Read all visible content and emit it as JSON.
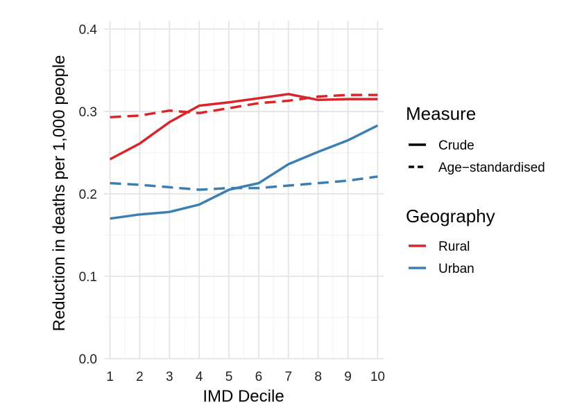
{
  "chart_data": {
    "type": "line",
    "title": "",
    "xlabel": "IMD Decile",
    "ylabel": "Reduction in deaths per 1,000 people",
    "x": [
      1,
      2,
      3,
      4,
      5,
      6,
      7,
      8,
      9,
      10
    ],
    "x_tick_labels": [
      "1",
      "2",
      "3",
      "4",
      "5",
      "6",
      "7",
      "8",
      "9",
      "10"
    ],
    "xlim": [
      0.8,
      10.2
    ],
    "ylim": [
      0.0,
      0.41
    ],
    "y_ticks": [
      0.0,
      0.1,
      0.2,
      0.3,
      0.4
    ],
    "y_tick_labels": [
      "0.0",
      "0.1",
      "0.2",
      "0.3",
      "0.4"
    ],
    "grid": true,
    "legend_placement": "right",
    "series": [
      {
        "geography": "Rural",
        "measure": "Crude",
        "color": "#d7262b",
        "dash": "solid",
        "values": [
          0.242,
          0.261,
          0.287,
          0.307,
          0.311,
          0.316,
          0.321,
          0.314,
          0.315,
          0.315
        ]
      },
      {
        "geography": "Rural",
        "measure": "Age-standardised",
        "color": "#d7262b",
        "dash": "dashed",
        "values": [
          0.293,
          0.295,
          0.301,
          0.298,
          0.304,
          0.31,
          0.313,
          0.318,
          0.32,
          0.32
        ]
      },
      {
        "geography": "Urban",
        "measure": "Crude",
        "color": "#3b7fb2",
        "dash": "solid",
        "values": [
          0.17,
          0.175,
          0.178,
          0.187,
          0.205,
          0.213,
          0.236,
          0.251,
          0.265,
          0.283
        ]
      },
      {
        "geography": "Urban",
        "measure": "Age-standardised",
        "color": "#3b7fb2",
        "dash": "dashed",
        "values": [
          0.213,
          0.211,
          0.208,
          0.205,
          0.207,
          0.207,
          0.21,
          0.213,
          0.216,
          0.221
        ]
      }
    ],
    "legend": {
      "measure": {
        "title": "Measure",
        "items": [
          {
            "label": "Crude",
            "dash": "solid",
            "color": "#000000"
          },
          {
            "label": "Age−standardised",
            "dash": "dashed",
            "color": "#000000"
          }
        ]
      },
      "geography": {
        "title": "Geography",
        "items": [
          {
            "label": "Rural",
            "dash": "solid",
            "color": "#d7262b"
          },
          {
            "label": "Urban",
            "dash": "solid",
            "color": "#3b7fb2"
          }
        ]
      }
    }
  }
}
